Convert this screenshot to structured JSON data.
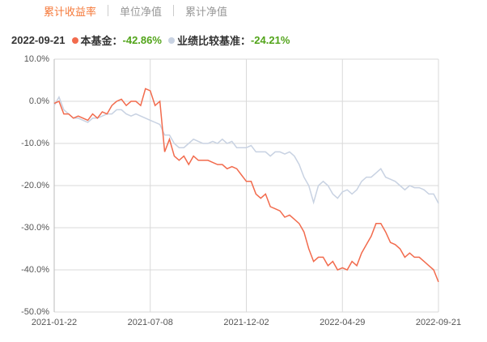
{
  "tabs": [
    "累计收益率",
    "单位净值",
    "累计净值"
  ],
  "chart_data": {
    "type": "line",
    "date": "2022-09-21",
    "categories": [
      "2021-01-22",
      null,
      null,
      null,
      null,
      null,
      null,
      null,
      null,
      null,
      null,
      null,
      null,
      null,
      null,
      null,
      null,
      null,
      null,
      null,
      "2021-07-08",
      null,
      null,
      null,
      null,
      null,
      null,
      null,
      null,
      null,
      null,
      null,
      null,
      null,
      null,
      null,
      null,
      null,
      null,
      null,
      "2021-12-02",
      null,
      null,
      null,
      null,
      null,
      null,
      null,
      null,
      null,
      null,
      null,
      null,
      null,
      null,
      null,
      null,
      null,
      null,
      null,
      "2022-04-29",
      null,
      null,
      null,
      null,
      null,
      null,
      null,
      null,
      null,
      null,
      null,
      null,
      null,
      null,
      null,
      null,
      null,
      null,
      null,
      "2022-09-21"
    ],
    "series": [
      {
        "name": "本基金：",
        "summary": "-42.86%",
        "color": "#f26b4d",
        "values": [
          -0.5,
          0,
          -3,
          -3,
          -4,
          -3.5,
          -4,
          -4.5,
          -3,
          -4,
          -2.5,
          -3,
          -1,
          0,
          0.5,
          -1,
          0,
          0,
          -1,
          3,
          2.5,
          -1,
          0,
          -12,
          -9,
          -13,
          -14,
          -13,
          -15,
          -13,
          -14,
          -14,
          -14,
          -14.5,
          -15,
          -15,
          -16,
          -15.5,
          -16,
          -17.5,
          -19,
          -19,
          -22,
          -23,
          -22,
          -25,
          -25.5,
          -26,
          -27.5,
          -27,
          -28,
          -29,
          -31,
          -35,
          -38,
          -37,
          -37,
          -39,
          -38,
          -40,
          -39.5,
          -40,
          -38,
          -39,
          -36,
          -34,
          -32,
          -29,
          -29,
          -31,
          -33.5,
          -34,
          -35,
          -37,
          -36,
          -37,
          -37,
          -38,
          -39,
          -40,
          -42.86
        ]
      },
      {
        "name": "业绩比较基准：",
        "summary": "-24.21%",
        "color": "#c8d2e2",
        "values": [
          -1,
          1,
          -2,
          -3,
          -4,
          -4,
          -4.5,
          -5,
          -4,
          -4,
          -3.5,
          -3,
          -3,
          -2,
          -2,
          -3,
          -3.5,
          -3,
          -3.5,
          -4,
          -4.5,
          -5,
          -5.5,
          -8,
          -8,
          -10,
          -11,
          -11,
          -10,
          -9,
          -9.5,
          -10,
          -10,
          -9.5,
          -10,
          -9,
          -10,
          -9.5,
          -11,
          -11,
          -11,
          -10.5,
          -12,
          -12,
          -12,
          -13,
          -12,
          -12,
          -12.5,
          -12,
          -13,
          -15,
          -18,
          -20,
          -24,
          -20,
          -19,
          -20,
          -22,
          -23,
          -21.5,
          -21,
          -22,
          -21,
          -19,
          -18,
          -18,
          -17,
          -16,
          -18,
          -18.5,
          -19,
          -20,
          -21,
          -20,
          -20.5,
          -20.5,
          -21,
          -22,
          -22,
          -24.21
        ]
      }
    ],
    "ylim": [
      -50,
      10
    ],
    "yticks": [
      {
        "value": -50,
        "label": "-50.0%"
      },
      {
        "value": -40,
        "label": "-40.0%"
      },
      {
        "value": -30,
        "label": "-30.0%"
      },
      {
        "value": -20,
        "label": "-20.0%"
      },
      {
        "value": -10,
        "label": "-10.0%"
      },
      {
        "value": 0,
        "label": "0.0%"
      },
      {
        "value": 10,
        "label": "10.0%"
      }
    ],
    "grid": true
  }
}
